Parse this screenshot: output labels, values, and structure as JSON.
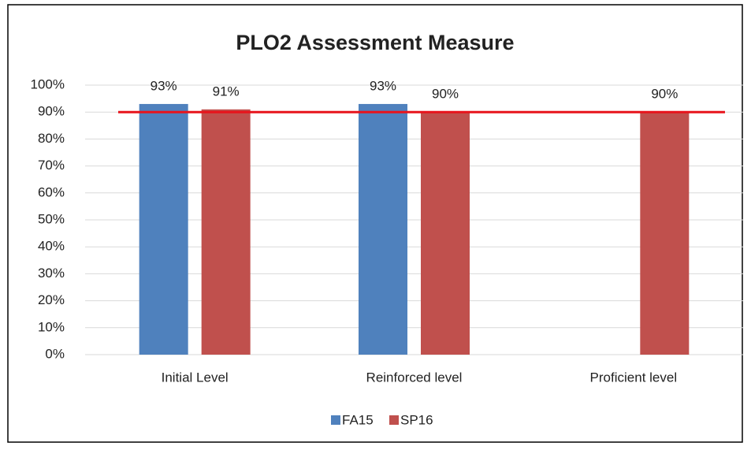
{
  "chart_data": {
    "type": "bar",
    "title": "PLO2 Assessment Measure",
    "categories": [
      "Initial Level",
      "Reinforced level",
      "Proficient level"
    ],
    "series": [
      {
        "name": "FA15",
        "color": "#4f81bd",
        "values": [
          93,
          93,
          null
        ],
        "value_labels": [
          "93%",
          "93%",
          null
        ]
      },
      {
        "name": "SP16",
        "color": "#c0504d",
        "values": [
          91,
          90,
          90
        ],
        "value_labels": [
          "91%",
          "90%",
          "90%"
        ]
      }
    ],
    "ylim": [
      0,
      100
    ],
    "yticks": [
      {
        "value": 0,
        "label": "0%"
      },
      {
        "value": 10,
        "label": "10%"
      },
      {
        "value": 20,
        "label": "20%"
      },
      {
        "value": 30,
        "label": "30%"
      },
      {
        "value": 40,
        "label": "40%"
      },
      {
        "value": 50,
        "label": "50%"
      },
      {
        "value": 60,
        "label": "60%"
      },
      {
        "value": 70,
        "label": "70%"
      },
      {
        "value": 80,
        "label": "80%"
      },
      {
        "value": 90,
        "label": "90%"
      },
      {
        "value": 100,
        "label": "100%"
      }
    ],
    "grid": true,
    "legend": "bottom",
    "target_line": {
      "value": 90,
      "color": "#e8131b"
    }
  }
}
